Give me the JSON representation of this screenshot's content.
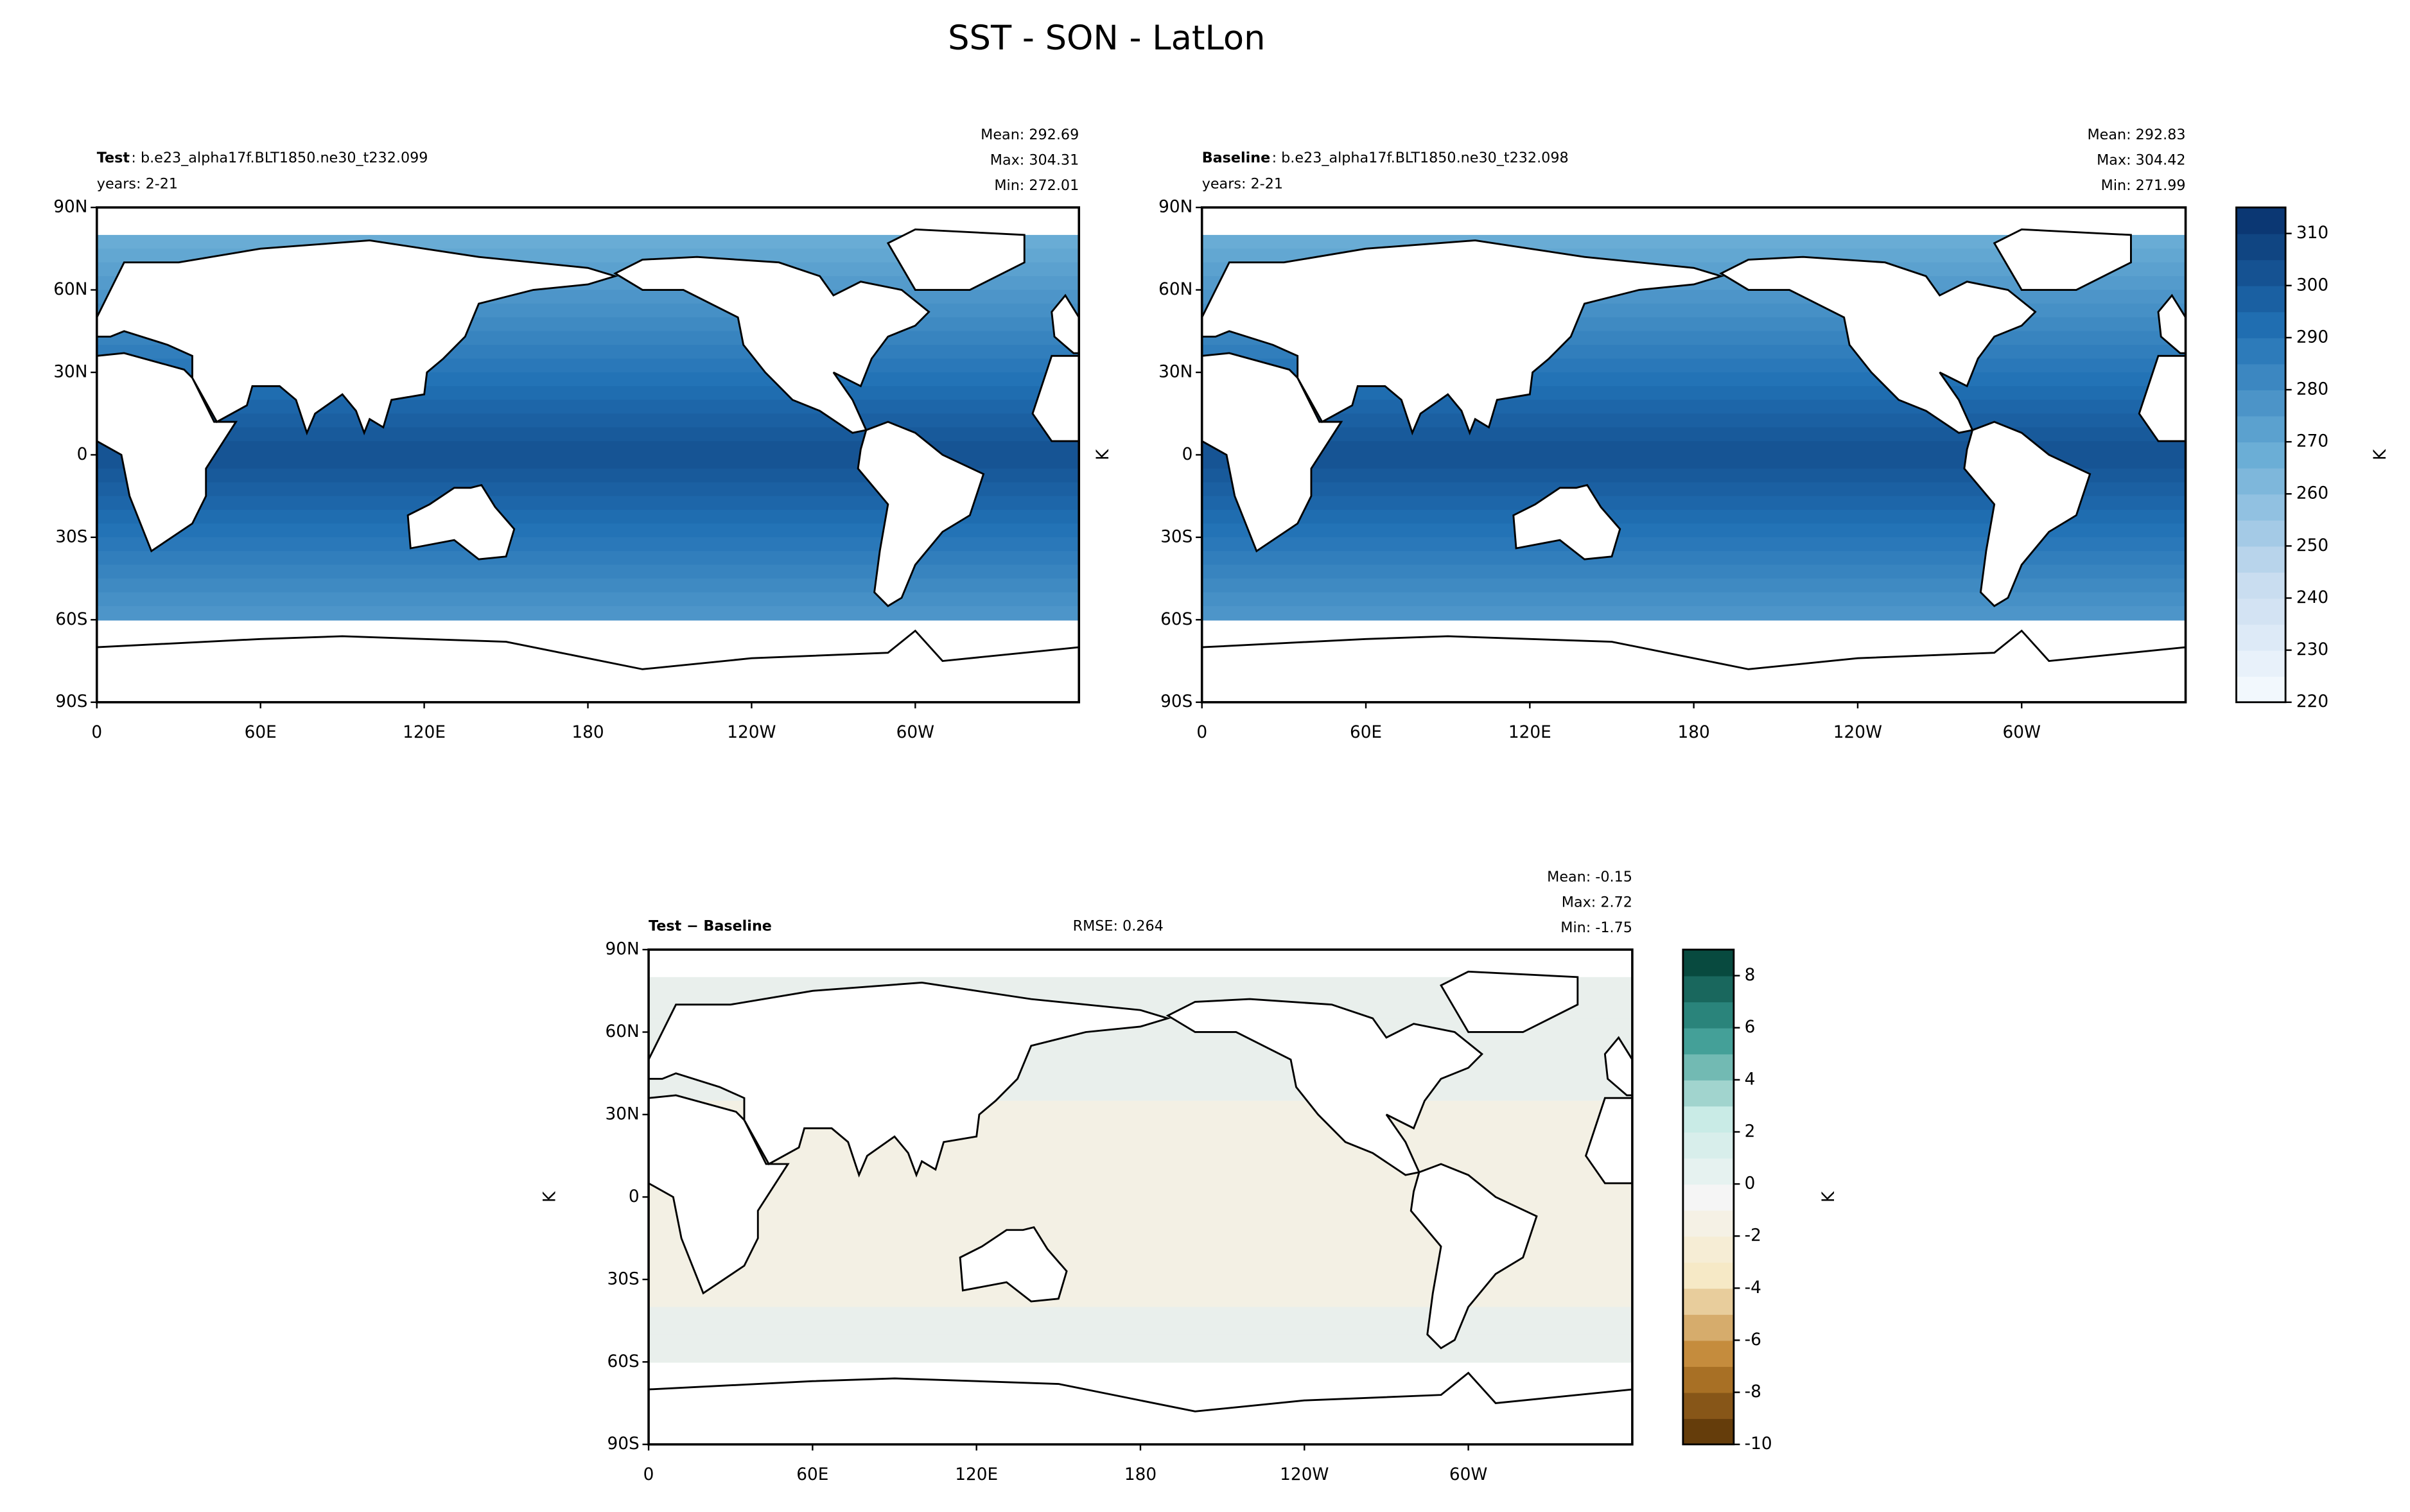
{
  "title": "SST - SON - LatLon",
  "lat_ticks": [
    "90N",
    "60N",
    "30N",
    "0",
    "30S",
    "60S",
    "90S"
  ],
  "lon_ticks": [
    "0",
    "60E",
    "120E",
    "180",
    "120W",
    "60W"
  ],
  "panels": [
    {
      "label_bold": "Test",
      "label": ": b.e23_alpha17f.BLT1850.ne30_t232.099",
      "years": "years: 2-21",
      "stats": [
        "Mean: 292.69",
        "Max: 304.31",
        "Min: 272.01"
      ]
    },
    {
      "label_bold": "Baseline",
      "label": ": b.e23_alpha17f.BLT1850.ne30_t232.098",
      "years": "years: 2-21",
      "stats": [
        "Mean: 292.83",
        "Max: 304.42",
        "Min: 271.99"
      ],
      "ylabel": "K"
    },
    {
      "label_bold": "Test − Baseline",
      "rmse": "RMSE: 0.264",
      "stats": [
        "Mean: -0.15",
        "Max:  2.72",
        "Min: -1.75"
      ],
      "ylabel": "K"
    }
  ],
  "colorbars": [
    {
      "label": "K",
      "lim": [
        220,
        315
      ],
      "ticks": [
        220,
        230,
        240,
        250,
        260,
        270,
        280,
        290,
        300,
        310
      ],
      "step": 5,
      "colors": [
        "#f7fbff",
        "#c6dbef",
        "#6baed6",
        "#2171b5",
        "#08306b"
      ]
    },
    {
      "label": "K",
      "lim": [
        -10,
        9
      ],
      "ticks": [
        -10,
        -8,
        -6,
        -4,
        -2,
        0,
        2,
        4,
        6,
        8
      ],
      "step": 1,
      "colors": [
        "#543005",
        "#bf812d",
        "#f6e8c3",
        "#f5f5f5",
        "#c7eae5",
        "#35978f",
        "#003c30"
      ]
    }
  ]
}
